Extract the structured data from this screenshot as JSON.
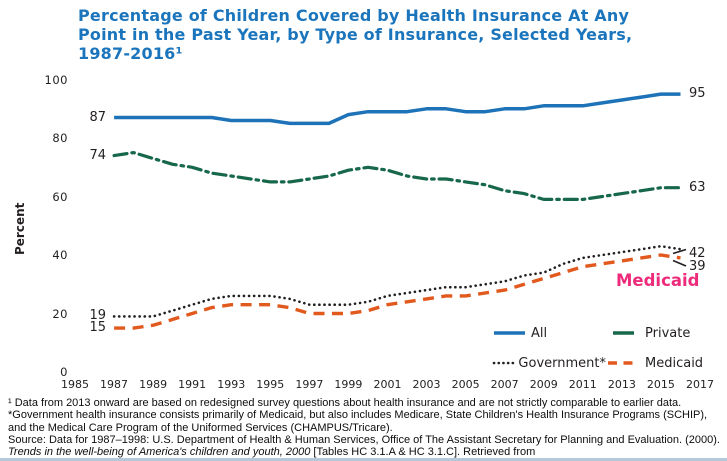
{
  "title": {
    "lines": [
      "Percentage of Children Covered by Health Insurance At Any",
      "Point in the Past Year, by Type of Insurance, Selected Years,",
      "1987-2016¹"
    ],
    "color": "#1b75bc"
  },
  "chart_data": {
    "type": "line",
    "title": "Percentage of Children Covered by Health Insurance At Any Point in the Past Year, by Type of Insurance, Selected Years, 1987-2016",
    "xlabel": "",
    "ylabel": "Percent",
    "xlim": [
      1985,
      2017
    ],
    "ylim": [
      0,
      100
    ],
    "grid": false,
    "x": [
      1987,
      1988,
      1989,
      1990,
      1991,
      1992,
      1993,
      1994,
      1995,
      1996,
      1997,
      1998,
      1999,
      2000,
      2001,
      2002,
      2003,
      2004,
      2005,
      2006,
      2007,
      2008,
      2009,
      2010,
      2011,
      2012,
      2013,
      2014,
      2015,
      2016
    ],
    "x_ticks": [
      1985,
      1987,
      1989,
      1991,
      1993,
      1995,
      1997,
      1999,
      2001,
      2003,
      2005,
      2007,
      2009,
      2011,
      2013,
      2015,
      2017
    ],
    "y_ticks": [
      0,
      20,
      40,
      60,
      80,
      100
    ],
    "series": [
      {
        "name": "All",
        "style": "solid",
        "color": "#1e73b8",
        "values": [
          87,
          87,
          87,
          87,
          87,
          87,
          86,
          86,
          86,
          85,
          85,
          85,
          88,
          89,
          89,
          89,
          90,
          90,
          89,
          89,
          90,
          90,
          91,
          91,
          91,
          92,
          93,
          94,
          95,
          95
        ]
      },
      {
        "name": "Private",
        "style": "dash-dot",
        "color": "#17684a",
        "values": [
          74,
          75,
          73,
          71,
          70,
          68,
          67,
          66,
          65,
          65,
          66,
          67,
          69,
          70,
          69,
          67,
          66,
          66,
          65,
          64,
          62,
          61,
          59,
          59,
          59,
          60,
          61,
          62,
          63,
          63
        ]
      },
      {
        "name": "Government*",
        "style": "dotted",
        "color": "#231f20",
        "values": [
          19,
          19,
          19,
          21,
          23,
          25,
          26,
          26,
          26,
          25,
          23,
          23,
          23,
          24,
          26,
          27,
          28,
          29,
          29,
          30,
          31,
          33,
          34,
          37,
          39,
          40,
          41,
          42,
          43,
          42
        ]
      },
      {
        "name": "Medicaid",
        "style": "dashed",
        "color": "#e2591e",
        "values": [
          15,
          15,
          16,
          18,
          20,
          22,
          23,
          23,
          23,
          22,
          20,
          20,
          20,
          21,
          23,
          24,
          25,
          26,
          26,
          27,
          28,
          30,
          32,
          34,
          36,
          37,
          38,
          39,
          40,
          39
        ]
      }
    ],
    "end_labels": {
      "left": [
        {
          "series": "All",
          "text": "87"
        },
        {
          "series": "Private",
          "text": "74"
        },
        {
          "series": "Government*",
          "text": "19"
        },
        {
          "series": "Medicaid",
          "text": "15"
        }
      ],
      "right": [
        {
          "series": "All",
          "text": "95"
        },
        {
          "series": "Private",
          "text": "63"
        },
        {
          "series": "Government*",
          "text": "42"
        },
        {
          "series": "Medicaid",
          "text": "39"
        }
      ]
    },
    "legend_position": "bottom-right"
  },
  "callout": {
    "text": "Medicaid",
    "color": "#ee2a7b"
  },
  "legend": {
    "items": [
      {
        "label": "All",
        "style": "solid",
        "color": "#1e73b8"
      },
      {
        "label": "Private",
        "style": "solid-short",
        "color": "#17684a"
      },
      {
        "label": "Government*",
        "style": "dotted",
        "color": "#231f20"
      },
      {
        "label": "Medicaid",
        "style": "dashed",
        "color": "#e2591e"
      }
    ]
  },
  "footnote": {
    "note": "¹ Data from 2013 onward are based on redesigned survey questions about health insurance and are not strictly comparable to earlier data. *Government health insurance consists primarily of Medicaid, but also includes Medicare, State Children's Health Insurance Programs (SCHIP), and the Medical Care Program of the Uniformed Services (CHAMPUS/Tricare).",
    "source_prefix": "Source: Data for 1987–1998: U.S. Department of Health & Human Services, Office of The Assistant Secretary for Planning and Evaluation. (2000). ",
    "source_italic": "Trends in the well-being of America's children and youth, 2000",
    "source_suffix": " [Tables HC 3.1.A & HC 3.1.C]. Retrieved from"
  },
  "colors": {
    "accent_rule": "#b5c9da",
    "text": "#231f20",
    "title": "#1b75bc"
  }
}
